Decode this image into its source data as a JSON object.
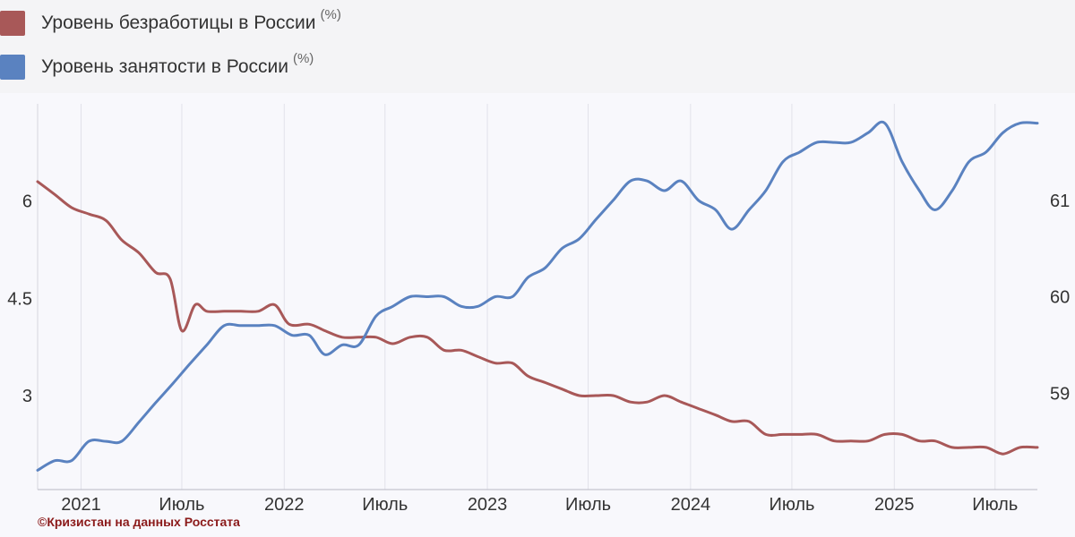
{
  "chart_data": {
    "type": "line",
    "title": "",
    "x_ticks": [
      "2021",
      "Июль",
      "2022",
      "Июль",
      "2023",
      "Июль",
      "2024",
      "Июль",
      "2025",
      "Июль"
    ],
    "x_tick_dates": [
      "2021-01-01",
      "2021-07-01",
      "2022-01-01",
      "2022-07-01",
      "2023-01-01",
      "2023-07-01",
      "2024-01-01",
      "2024-07-01",
      "2025-01-01",
      "2025-07-01"
    ],
    "x_range": [
      "2020-10-15",
      "2025-09-15"
    ],
    "y_left": {
      "ticks": [
        "6",
        "4.5",
        "3"
      ],
      "tick_values": [
        6,
        4.5,
        3
      ],
      "range": [
        1.55,
        7.5
      ]
    },
    "y_right": {
      "ticks": [
        "61",
        "60",
        "59"
      ],
      "tick_values": [
        61,
        60,
        59
      ],
      "range": [
        58.0,
        62.0
      ]
    },
    "grid": "vertical",
    "legend_position": "top-left",
    "series": [
      {
        "name": "Уровень безработицы в России",
        "unit": "(%)",
        "axis": "left",
        "color": "#a85858",
        "points": [
          [
            "2020-10-15",
            6.3
          ],
          [
            "2020-11-15",
            6.1
          ],
          [
            "2020-12-15",
            5.9
          ],
          [
            "2021-01-15",
            5.8
          ],
          [
            "2021-02-15",
            5.7
          ],
          [
            "2021-03-15",
            5.4
          ],
          [
            "2021-04-15",
            5.2
          ],
          [
            "2021-05-15",
            4.9
          ],
          [
            "2021-06-10",
            4.8
          ],
          [
            "2021-07-01",
            4.0
          ],
          [
            "2021-07-25",
            4.4
          ],
          [
            "2021-08-15",
            4.3
          ],
          [
            "2021-09-15",
            4.3
          ],
          [
            "2021-10-15",
            4.3
          ],
          [
            "2021-11-15",
            4.3
          ],
          [
            "2021-12-15",
            4.4
          ],
          [
            "2022-01-10",
            4.1
          ],
          [
            "2022-02-15",
            4.1
          ],
          [
            "2022-03-15",
            4.0
          ],
          [
            "2022-04-15",
            3.9
          ],
          [
            "2022-05-15",
            3.9
          ],
          [
            "2022-06-15",
            3.9
          ],
          [
            "2022-07-15",
            3.8
          ],
          [
            "2022-08-15",
            3.9
          ],
          [
            "2022-09-15",
            3.9
          ],
          [
            "2022-10-15",
            3.7
          ],
          [
            "2022-11-15",
            3.7
          ],
          [
            "2022-12-15",
            3.6
          ],
          [
            "2023-01-15",
            3.5
          ],
          [
            "2023-02-15",
            3.5
          ],
          [
            "2023-03-15",
            3.3
          ],
          [
            "2023-04-15",
            3.2
          ],
          [
            "2023-05-15",
            3.1
          ],
          [
            "2023-06-15",
            3.0
          ],
          [
            "2023-07-15",
            3.0
          ],
          [
            "2023-08-15",
            3.0
          ],
          [
            "2023-09-15",
            2.9
          ],
          [
            "2023-10-15",
            2.9
          ],
          [
            "2023-11-15",
            3.0
          ],
          [
            "2023-12-15",
            2.9
          ],
          [
            "2024-01-15",
            2.8
          ],
          [
            "2024-02-15",
            2.7
          ],
          [
            "2024-03-15",
            2.6
          ],
          [
            "2024-04-15",
            2.6
          ],
          [
            "2024-05-15",
            2.4
          ],
          [
            "2024-06-15",
            2.4
          ],
          [
            "2024-07-15",
            2.4
          ],
          [
            "2024-08-15",
            2.4
          ],
          [
            "2024-09-15",
            2.3
          ],
          [
            "2024-10-15",
            2.3
          ],
          [
            "2024-11-15",
            2.3
          ],
          [
            "2024-12-15",
            2.4
          ],
          [
            "2025-01-15",
            2.4
          ],
          [
            "2025-02-15",
            2.3
          ],
          [
            "2025-03-15",
            2.3
          ],
          [
            "2025-04-15",
            2.2
          ],
          [
            "2025-05-15",
            2.2
          ],
          [
            "2025-06-15",
            2.2
          ],
          [
            "2025-07-15",
            2.1
          ],
          [
            "2025-08-15",
            2.2
          ],
          [
            "2025-09-15",
            2.2
          ]
        ]
      },
      {
        "name": "Уровень занятости в России",
        "unit": "(%)",
        "axis": "right",
        "color": "#5a82c0",
        "points": [
          [
            "2020-10-15",
            58.2
          ],
          [
            "2020-11-15",
            58.3
          ],
          [
            "2020-12-15",
            58.3
          ],
          [
            "2021-01-15",
            58.5
          ],
          [
            "2021-02-15",
            58.5
          ],
          [
            "2021-03-15",
            58.5
          ],
          [
            "2021-04-15",
            58.7
          ],
          [
            "2021-05-15",
            58.9
          ],
          [
            "2021-06-15",
            59.1
          ],
          [
            "2021-07-15",
            59.3
          ],
          [
            "2021-08-15",
            59.5
          ],
          [
            "2021-09-15",
            59.7
          ],
          [
            "2021-10-15",
            59.7
          ],
          [
            "2021-11-15",
            59.7
          ],
          [
            "2021-12-15",
            59.7
          ],
          [
            "2022-01-15",
            59.6
          ],
          [
            "2022-02-15",
            59.6
          ],
          [
            "2022-03-15",
            59.4
          ],
          [
            "2022-04-15",
            59.5
          ],
          [
            "2022-05-15",
            59.5
          ],
          [
            "2022-06-15",
            59.8
          ],
          [
            "2022-07-15",
            59.9
          ],
          [
            "2022-08-15",
            60.0
          ],
          [
            "2022-09-15",
            60.0
          ],
          [
            "2022-10-15",
            60.0
          ],
          [
            "2022-11-15",
            59.9
          ],
          [
            "2022-12-15",
            59.9
          ],
          [
            "2023-01-15",
            60.0
          ],
          [
            "2023-02-15",
            60.0
          ],
          [
            "2023-03-15",
            60.2
          ],
          [
            "2023-04-15",
            60.3
          ],
          [
            "2023-05-15",
            60.5
          ],
          [
            "2023-06-15",
            60.6
          ],
          [
            "2023-07-15",
            60.8
          ],
          [
            "2023-08-15",
            61.0
          ],
          [
            "2023-09-15",
            61.2
          ],
          [
            "2023-10-15",
            61.2
          ],
          [
            "2023-11-15",
            61.1
          ],
          [
            "2023-12-15",
            61.2
          ],
          [
            "2024-01-15",
            61.0
          ],
          [
            "2024-02-15",
            60.9
          ],
          [
            "2024-03-15",
            60.7
          ],
          [
            "2024-04-15",
            60.9
          ],
          [
            "2024-05-15",
            61.1
          ],
          [
            "2024-06-15",
            61.4
          ],
          [
            "2024-07-15",
            61.5
          ],
          [
            "2024-08-15",
            61.6
          ],
          [
            "2024-09-15",
            61.6
          ],
          [
            "2024-10-15",
            61.6
          ],
          [
            "2024-11-15",
            61.7
          ],
          [
            "2024-12-15",
            61.8
          ],
          [
            "2025-01-15",
            61.4
          ],
          [
            "2025-02-15",
            61.1
          ],
          [
            "2025-03-15",
            60.9
          ],
          [
            "2025-04-15",
            61.1
          ],
          [
            "2025-05-15",
            61.4
          ],
          [
            "2025-06-15",
            61.5
          ],
          [
            "2025-07-15",
            61.7
          ],
          [
            "2025-08-15",
            61.8
          ],
          [
            "2025-09-15",
            61.8
          ]
        ]
      }
    ]
  },
  "credit": "©Кризистан на данных Росстата"
}
